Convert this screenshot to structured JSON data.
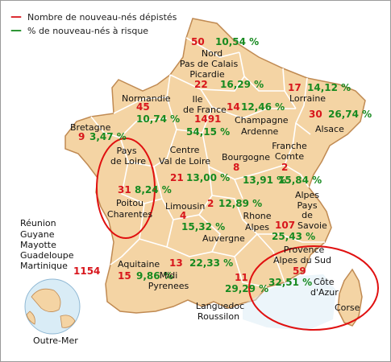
{
  "legend": {
    "newborns_marker": "—",
    "newborns_label": "Nombre de nouveau-nés dépistés",
    "risk_marker": "—",
    "risk_label": "% de nouveau-nés à risque"
  },
  "colors": {
    "newborns": "#d8161c",
    "risk": "#178a20",
    "land": "#f4d4a4",
    "land_border": "#c08a52",
    "region_line": "#ffffff",
    "sea": "#d9ecf6",
    "highlight_circle": "#e01010"
  },
  "regions": {
    "nord": {
      "name_1": "Nord",
      "name_2": "Pas de Calais",
      "newborns": "50",
      "risk": "10,54 %"
    },
    "picardie": {
      "name": "Picardie",
      "newborns": "22",
      "risk": "16,29 %"
    },
    "normandie": {
      "name": "Normandie",
      "newborns": "45",
      "risk": "10,74 %"
    },
    "ile_de_france": {
      "name_1": "Ile",
      "name_2": "de France",
      "newborns": "1491",
      "risk": "54,15 %"
    },
    "champagne": {
      "name_1": "Champagne",
      "name_2": "Ardenne",
      "newborns": "14",
      "risk": "12,46 %"
    },
    "lorraine": {
      "name": "Lorraine",
      "newborns": "17",
      "risk": "14,12 %"
    },
    "alsace": {
      "name": "Alsace",
      "newborns": "30",
      "risk": "26,74 %"
    },
    "bretagne": {
      "name": "Bretagne",
      "newborns": "9",
      "risk": "3,47 %"
    },
    "pays_de_loire": {
      "name_1": "Pays",
      "name_2": "de Loire",
      "newborns": "31",
      "risk": "8,24 %"
    },
    "centre": {
      "name_1": "Centre",
      "name_2": "Val de Loire",
      "newborns": "21",
      "risk": "13,00 %"
    },
    "bourgogne": {
      "name": "Bourgogne",
      "newborns": "8",
      "risk": "13,91 %"
    },
    "franche_comte": {
      "name_1": "Franche",
      "name_2": "Comte",
      "newborns": "2",
      "risk": "15,84 %"
    },
    "poitou": {
      "name_1": "Poitou",
      "name_2": "Charentes"
    },
    "limousin": {
      "name": "Limousin",
      "newborns": "4",
      "risk": "15,32 %"
    },
    "auvergne": {
      "name": "Auvergne",
      "newborns": "2",
      "risk": "12,89 %"
    },
    "rhone_alpes": {
      "name_1": "Rhone",
      "name_2": "Alpes"
    },
    "alpes": {
      "name_1": "Alpes",
      "name_2": "Pays",
      "name_3": "de",
      "name_4": "Savoie",
      "newborns": "107",
      "risk": "25,43 %"
    },
    "aquitaine": {
      "name": "Aquitaine",
      "newborns": "15",
      "risk": "9,86 %"
    },
    "midi_pyrenees": {
      "name_1": "Midi",
      "name_2": "Pyrenees",
      "newborns": "13",
      "risk": "22,33 %"
    },
    "languedoc": {
      "name_1": "Languedoc",
      "name_2": "Roussilon",
      "newborns": "11",
      "risk": "29,29 %"
    },
    "paca": {
      "name_1": "Provence",
      "name_2": "Alpes du Sud",
      "name_3": "Côte",
      "name_4": "d'Azur",
      "newborns": "59",
      "risk": "32,51 %"
    },
    "corse": {
      "name": "Corse"
    }
  },
  "overseas": {
    "names": [
      "Réunion",
      "Guyane",
      "Mayotte",
      "Guadeloupe",
      "Martinique"
    ],
    "newborns": "1154",
    "globe_label": "Outre-Mer"
  }
}
